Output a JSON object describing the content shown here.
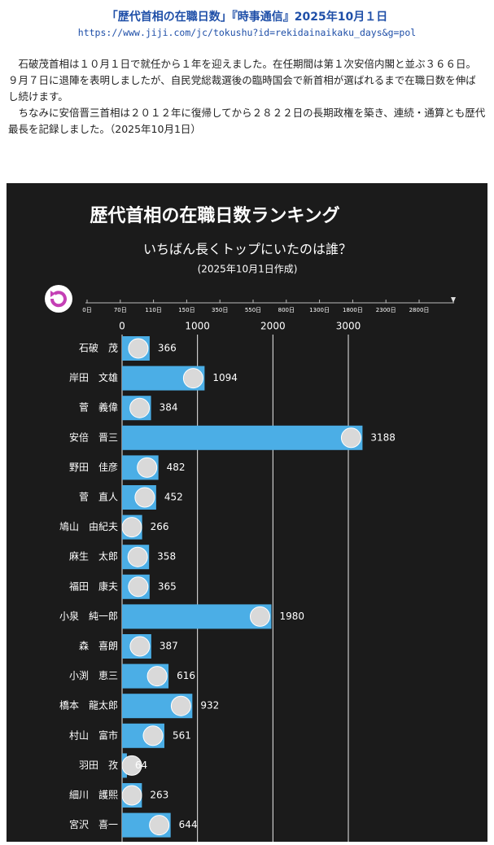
{
  "header": {
    "title": "「歴代首相の在職日数」『時事通信』2025年10月１日",
    "url": "https://www.jiji.com/jc/tokushu?id=rekidainaikaku_days&g=pol"
  },
  "paragraphs": [
    "石破茂首相は１０月１日で就任から１年を迎えました。在任期間は第１次安倍内閣と並ぶ３６６日。９月７日に退陣を表明しましたが、自民党総裁選後の臨時国会で新首相が選ばれるまで在職日数を伸ばし続けます。",
    "ちなみに安倍晋三首相は２０１２年に復帰してから２８２２日の長期政権を築き、連続・通算とも歴代最長を記録しました。（2025年10月1日）"
  ],
  "chart_data": {
    "type": "bar",
    "orientation": "horizontal",
    "title": "歴代首相の在職日数ランキング",
    "subtitle": "いちばん長くトップにいたのは誰？",
    "note": "(2025年10月1日作成)",
    "slider_labels": [
      "0日",
      "70日",
      "110日",
      "150日",
      "350日",
      "550日",
      "800日",
      "1300日",
      "1800日",
      "2300日",
      "2800日"
    ],
    "categories": [
      "石破　茂",
      "岸田　文雄",
      "菅　義偉",
      "安倍　晋三",
      "野田　佳彦",
      "菅　直人",
      "鳩山　由紀夫",
      "麻生　太郎",
      "福田　康夫",
      "小泉　純一郎",
      "森　喜朗",
      "小渕　恵三",
      "橋本　龍太郎",
      "村山　富市",
      "羽田　孜",
      "細川　護熙",
      "宮沢　喜一"
    ],
    "values": [
      366,
      1094,
      384,
      3188,
      482,
      452,
      266,
      358,
      365,
      1980,
      387,
      616,
      932,
      561,
      64,
      263,
      644
    ],
    "color": "#4baee6",
    "xlim": [
      0,
      4500
    ],
    "xticks": [
      0,
      1000,
      2000,
      3000
    ],
    "grid": true
  }
}
